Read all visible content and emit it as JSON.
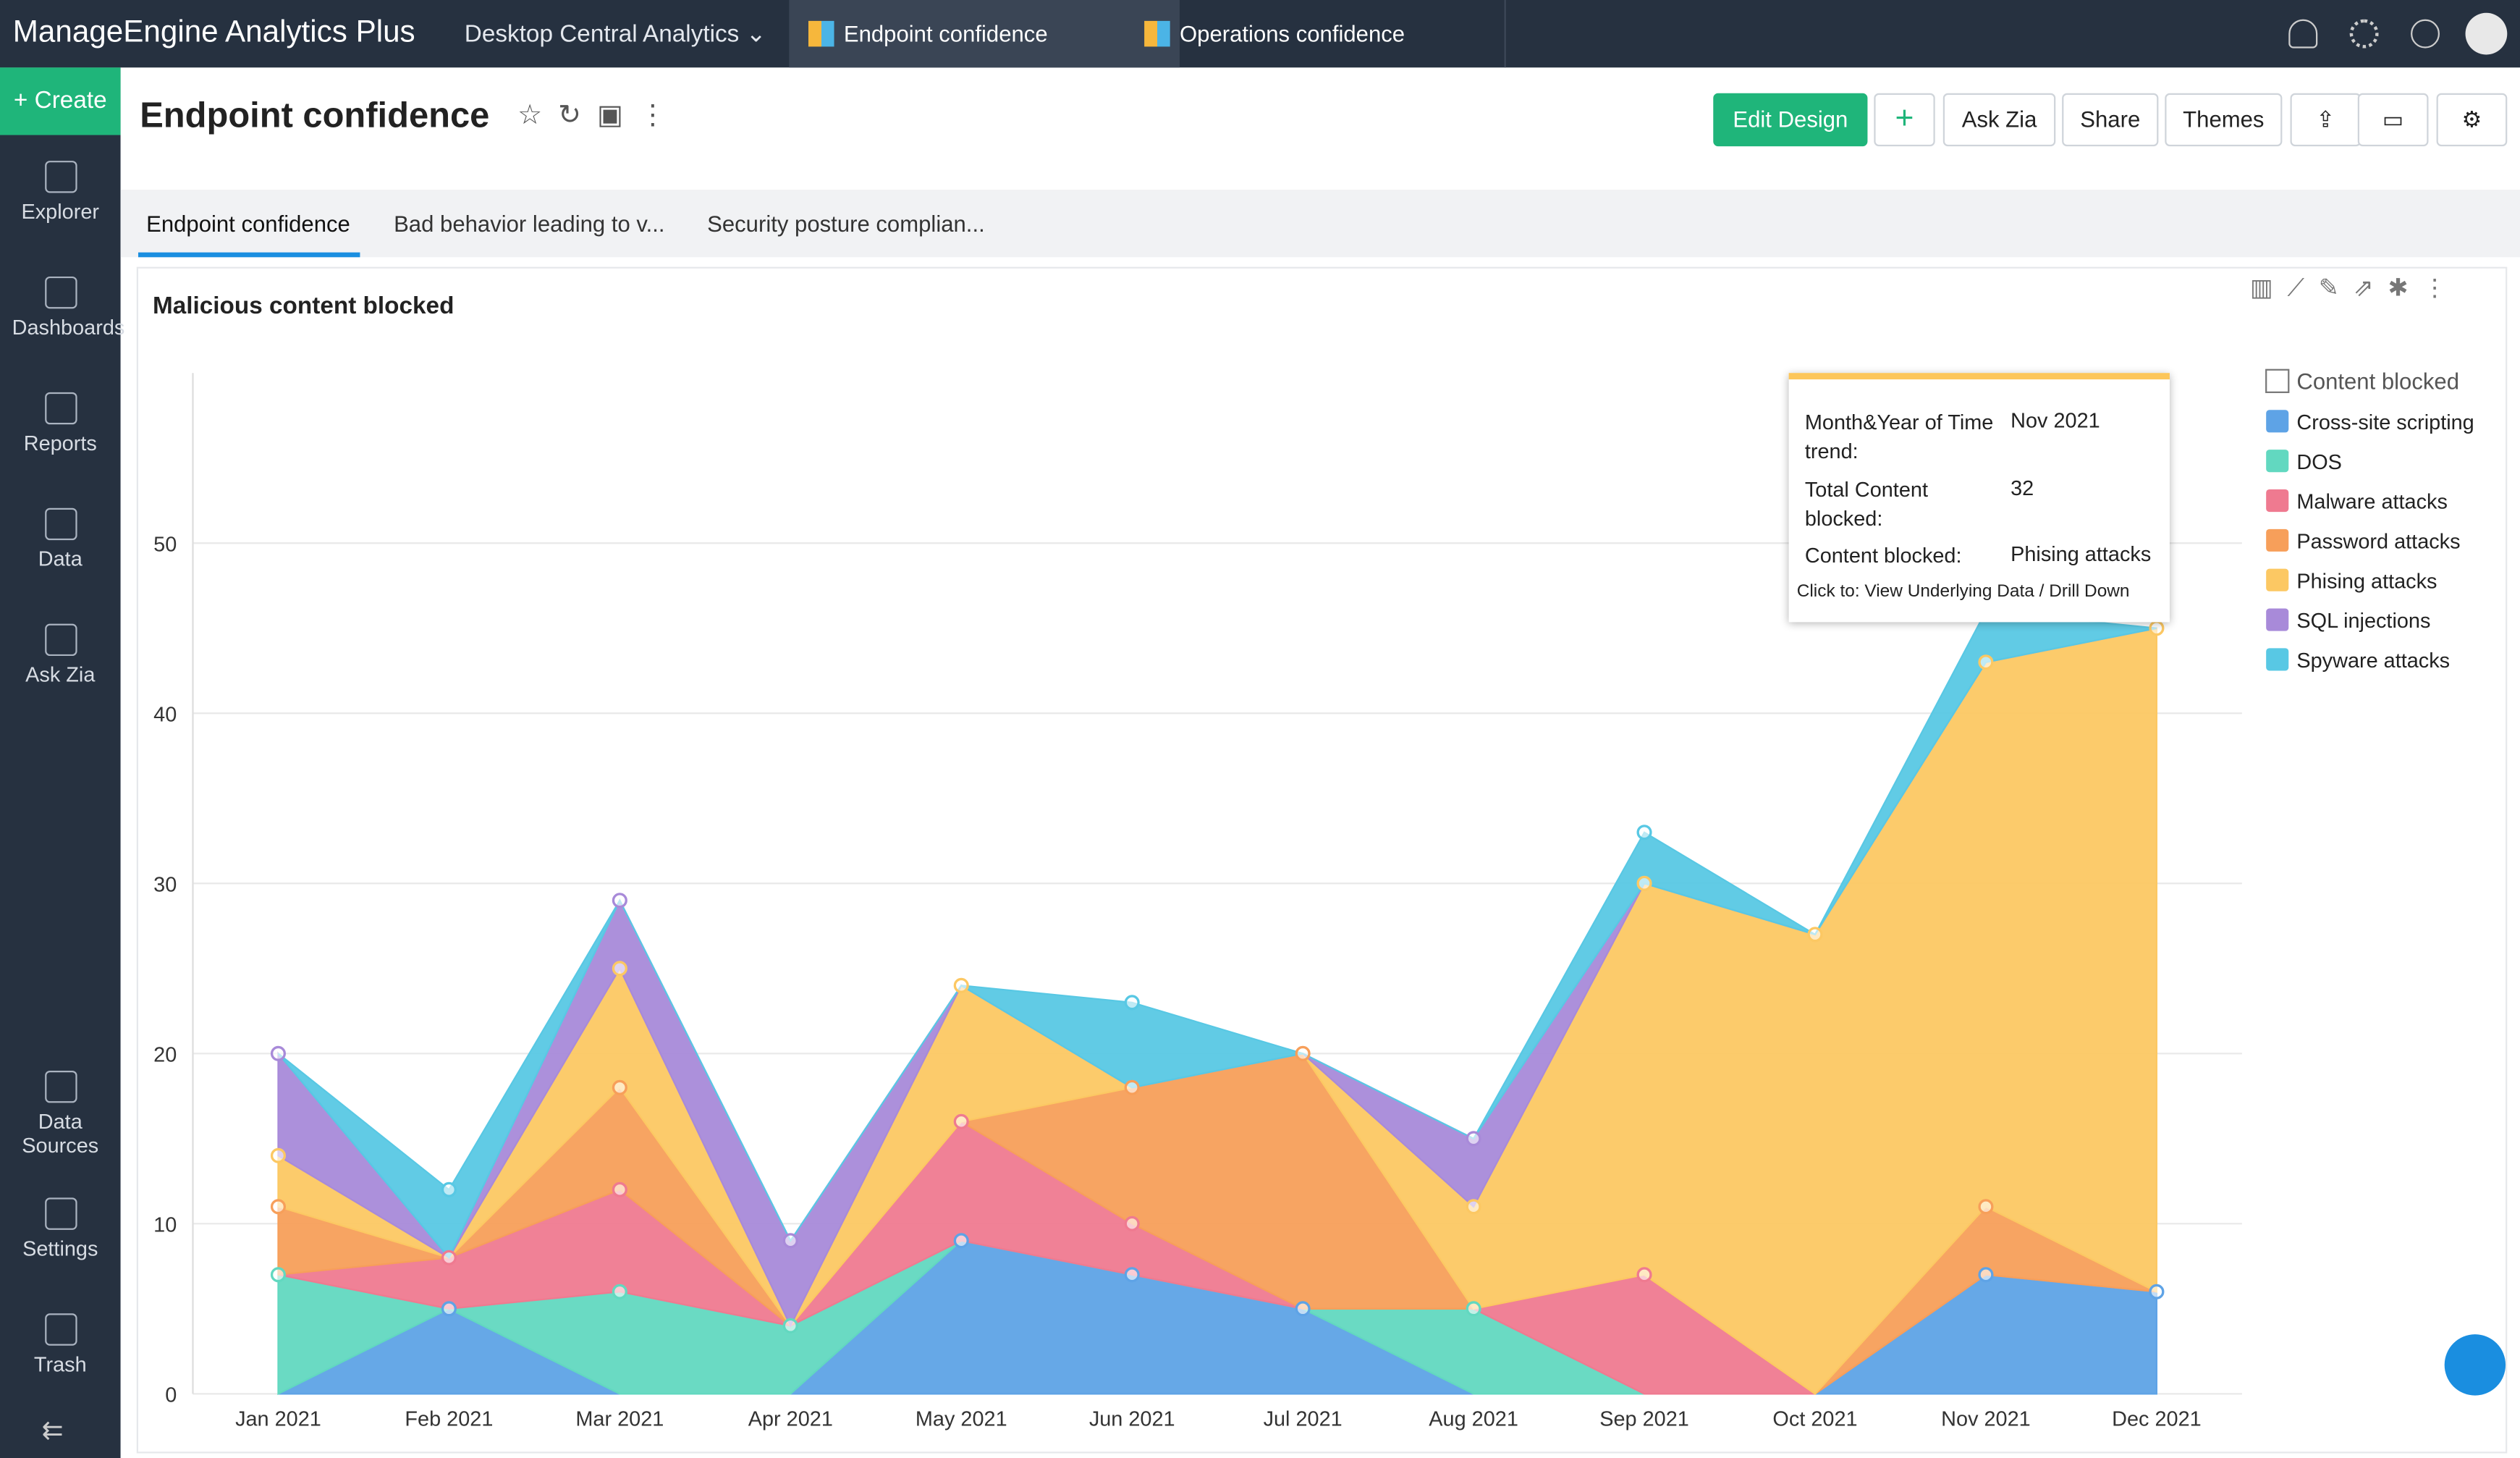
{
  "header": {
    "brand": "ManageEngine Analytics Plus",
    "workspace": "Desktop Central Analytics",
    "tabs": [
      "Endpoint confidence",
      "Operations confidence"
    ]
  },
  "sidebar": {
    "create": "Create",
    "items": [
      "Explorer",
      "Dashboards",
      "Reports",
      "Data",
      "Ask Zia",
      "Data Sources",
      "Settings",
      "Trash"
    ]
  },
  "toolbar": {
    "title": "Endpoint confidence",
    "buttons": [
      "Edit Design",
      "Ask Zia",
      "Share",
      "Themes"
    ]
  },
  "subtabs": [
    "Endpoint confidence",
    "Bad behavior leading to v...",
    "Security posture complian..."
  ],
  "chart_data": {
    "type": "stacked-area",
    "title": "Malicious content blocked",
    "legend_title": "Content blocked",
    "categories": [
      "Jan 2021",
      "Feb 2021",
      "Mar 2021",
      "Apr 2021",
      "May 2021",
      "Jun 2021",
      "Jul 2021",
      "Aug 2021",
      "Sep 2021",
      "Oct 2021",
      "Nov 2021",
      "Dec 2021"
    ],
    "series": [
      {
        "name": "Cross-site scripting",
        "color": "#5ea3e6",
        "values": [
          0,
          5,
          0,
          0,
          9,
          7,
          5,
          0,
          0,
          0,
          7,
          6
        ]
      },
      {
        "name": "DOS",
        "color": "#62d8c0",
        "values": [
          7,
          0,
          6,
          4,
          0,
          0,
          0,
          5,
          0,
          0,
          0,
          0
        ]
      },
      {
        "name": "Malware attacks",
        "color": "#ef7a90",
        "values": [
          0,
          3,
          6,
          0,
          7,
          3,
          0,
          0,
          7,
          0,
          0,
          0
        ]
      },
      {
        "name": "Password attacks",
        "color": "#f79f5a",
        "values": [
          4,
          0,
          6,
          0,
          0,
          8,
          15,
          0,
          0,
          0,
          4,
          0
        ]
      },
      {
        "name": "Phising attacks",
        "color": "#fcc863",
        "values": [
          3,
          0,
          7,
          0,
          8,
          0,
          0,
          6,
          23,
          27,
          32,
          39
        ]
      },
      {
        "name": "SQL injections",
        "color": "#a88ad9",
        "values": [
          6,
          0,
          4,
          5,
          0,
          0,
          0,
          4,
          0,
          0,
          0,
          0
        ]
      },
      {
        "name": "Spyware attacks",
        "color": "#58c8e4",
        "values": [
          0,
          4,
          0,
          0,
          0,
          5,
          0,
          0,
          3,
          0,
          3,
          0
        ]
      }
    ],
    "ylim": [
      0,
      60
    ],
    "yticks": [
      0,
      10,
      20,
      30,
      40,
      50
    ],
    "grid": true,
    "legend": "right",
    "tooltip": {
      "rows": [
        [
          "Month&Year of Time trend:",
          "Nov 2021"
        ],
        [
          "Total Content blocked:",
          32
        ],
        [
          "Content blocked:",
          "Phising attacks"
        ]
      ],
      "footer": "Click to: View Underlying Data / Drill Down"
    }
  }
}
